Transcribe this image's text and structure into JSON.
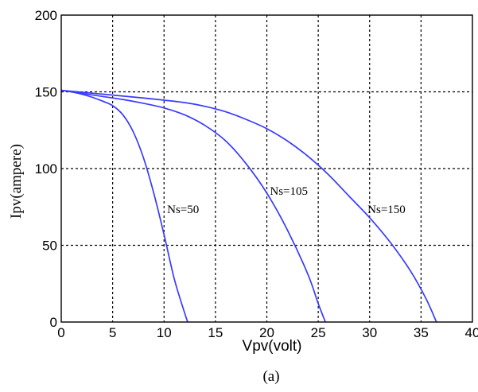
{
  "chart_data": {
    "type": "line",
    "xlabel": "Vpv(volt)",
    "ylabel": "Ipv(ampere)",
    "xlim": [
      0,
      40
    ],
    "ylim": [
      0,
      200
    ],
    "xticks": [
      "0",
      "5",
      "10",
      "15",
      "20",
      "25",
      "30",
      "35",
      "40"
    ],
    "yticks": [
      "0",
      "50",
      "100",
      "150",
      "200"
    ],
    "grid": true,
    "line_color": "#3a3aff",
    "caption": "(a)",
    "series": [
      {
        "name": "Ns=50",
        "points": [
          [
            0,
            151
          ],
          [
            1,
            150
          ],
          [
            2,
            148.5
          ],
          [
            3,
            146.5
          ],
          [
            4,
            144
          ],
          [
            5,
            141
          ],
          [
            6,
            135
          ],
          [
            7,
            124
          ],
          [
            8,
            107
          ],
          [
            9,
            84
          ],
          [
            10,
            57
          ],
          [
            11,
            28
          ],
          [
            12,
            6
          ],
          [
            12.3,
            0
          ]
        ]
      },
      {
        "name": "Ns=105",
        "points": [
          [
            0,
            151
          ],
          [
            2,
            149
          ],
          [
            4,
            147
          ],
          [
            6,
            145
          ],
          [
            8,
            142.5
          ],
          [
            10,
            139.5
          ],
          [
            12,
            135
          ],
          [
            14,
            128
          ],
          [
            16,
            118
          ],
          [
            18,
            103
          ],
          [
            20,
            84
          ],
          [
            22,
            60
          ],
          [
            24,
            31
          ],
          [
            25,
            12
          ],
          [
            25.7,
            0
          ]
        ]
      },
      {
        "name": "Ns=150",
        "points": [
          [
            0,
            151
          ],
          [
            4,
            148.5
          ],
          [
            8,
            146
          ],
          [
            12,
            143
          ],
          [
            14,
            140.5
          ],
          [
            16,
            137
          ],
          [
            18,
            132
          ],
          [
            20,
            126
          ],
          [
            22,
            118
          ],
          [
            24,
            108
          ],
          [
            26,
            96
          ],
          [
            28,
            82
          ],
          [
            30,
            68
          ],
          [
            32,
            52
          ],
          [
            34,
            33
          ],
          [
            35.5,
            15
          ],
          [
            36.5,
            0
          ]
        ]
      }
    ],
    "annotations": [
      {
        "text": "Ns=50",
        "x": 10.3,
        "y": 71
      },
      {
        "text": "Ns=105",
        "x": 20.3,
        "y": 83
      },
      {
        "text": "Ns=150",
        "x": 29.8,
        "y": 71
      }
    ]
  }
}
